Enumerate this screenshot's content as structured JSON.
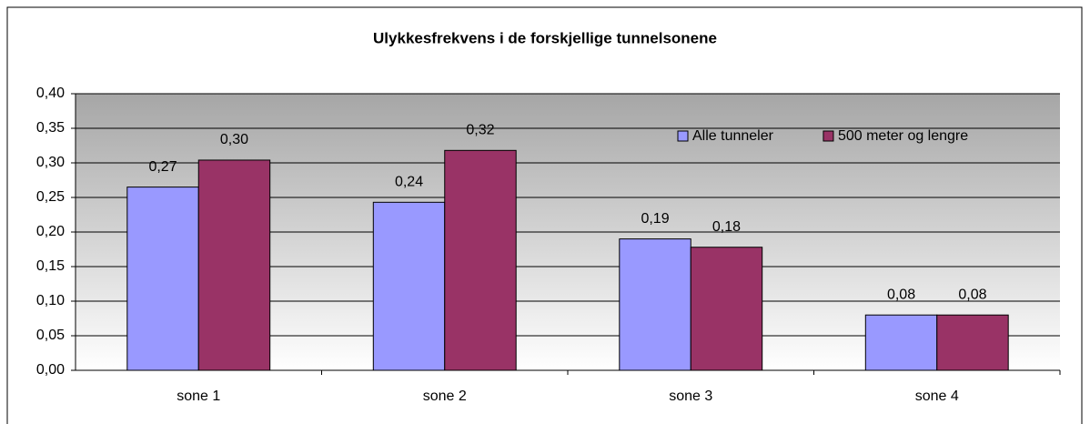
{
  "chart_data": {
    "type": "bar",
    "title": "Ulykkesfrekvens i de forskjellige tunnelsonene",
    "categories": [
      "sone 1",
      "sone 2",
      "sone 3",
      "sone 4"
    ],
    "series": [
      {
        "name": "Alle tunneler",
        "color": "#9999ff",
        "values": [
          0.265,
          0.243,
          0.19,
          0.08
        ],
        "value_labels": [
          "0,27",
          "0,24",
          "0,19",
          "0,08"
        ]
      },
      {
        "name": "500 meter og lengre",
        "color": "#993366",
        "values": [
          0.304,
          0.318,
          0.178,
          0.08
        ],
        "value_labels": [
          "0,30",
          "0,32",
          "0,18",
          "0,08"
        ]
      }
    ],
    "ylim": [
      0,
      0.4
    ],
    "yticks": [
      {
        "value": 0,
        "label": "0,00"
      },
      {
        "value": 0.05,
        "label": "0,05"
      },
      {
        "value": 0.1,
        "label": "0,10"
      },
      {
        "value": 0.15,
        "label": "0,15"
      },
      {
        "value": 0.2,
        "label": "0,20"
      },
      {
        "value": 0.25,
        "label": "0,25"
      },
      {
        "value": 0.3,
        "label": "0,30"
      },
      {
        "value": 0.35,
        "label": "0,35"
      },
      {
        "value": 0.4,
        "label": "0,40"
      }
    ],
    "grid": true,
    "legend": "top-right"
  }
}
